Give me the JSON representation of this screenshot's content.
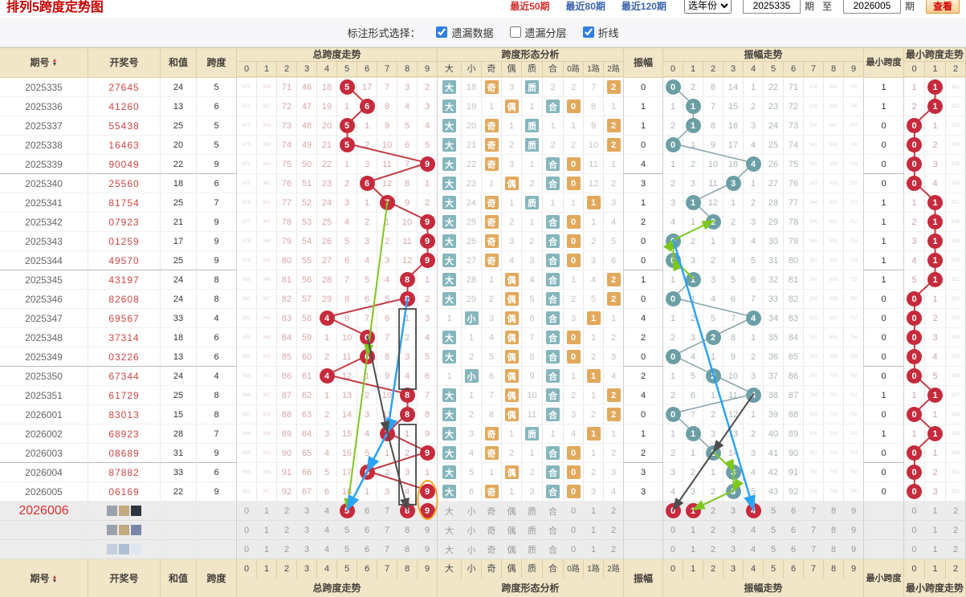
{
  "header": {
    "title": "排列5跨度定势图",
    "links": [
      "最近50期",
      "最近80期",
      "最近120期"
    ],
    "year_select": "选年份",
    "start_value": "2025335",
    "unit_label": "期",
    "to_label": "至",
    "end_value": "2026005",
    "view_button": "查看"
  },
  "controls": {
    "label": "标注形式选择：",
    "items": [
      {
        "label": "遗漏数据",
        "checked": true
      },
      {
        "label": "遗漏分层",
        "checked": false
      },
      {
        "label": "折线",
        "checked": true
      }
    ]
  },
  "columns": {
    "period": "期号",
    "number": "开奖号",
    "sum": "和值",
    "span": "跨度",
    "span_trend": "总跨度走势",
    "analysis": "跨度形态分析",
    "analysis_cols": [
      "大",
      "小",
      "奇",
      "偶",
      "质",
      "合",
      "0路",
      "1路",
      "2路"
    ],
    "amp": "振幅",
    "amp_trend": "振幅走势",
    "min": "最小跨度",
    "min_trend": "最小跨度走势",
    "digits": [
      "0",
      "1",
      "2",
      "3",
      "4",
      "5",
      "6",
      "7",
      "8",
      "9"
    ],
    "min_digits": [
      "0",
      "1",
      "2"
    ]
  },
  "rows": [
    {
      "p": "2025335",
      "n": "27645",
      "s": "24",
      "k": 5,
      "sc": [
        "670",
        "336",
        "71",
        "46",
        "18",
        "*5",
        "17",
        "7",
        "3",
        "2"
      ],
      "an": [
        "*大",
        "18",
        "*奇",
        "3",
        "*质",
        "2",
        "2",
        "7",
        "*2"
      ],
      "a": 0,
      "ac": [
        "*0",
        "2",
        "6",
        "14",
        "1",
        "22",
        "71",
        "338",
        "685",
        "745"
      ],
      "m": 1,
      "mc": [
        "1",
        "*1",
        "311"
      ]
    },
    {
      "p": "2025336",
      "n": "41260",
      "s": "13",
      "k": 6,
      "sc": [
        "671",
        "337",
        "72",
        "47",
        "19",
        "1",
        "*6",
        "8",
        "4",
        "3"
      ],
      "an": [
        "*大",
        "19",
        "1",
        "*偶",
        "1",
        "*合",
        "*0",
        "8",
        "1"
      ],
      "a": 1,
      "ac": [
        "1",
        "*1",
        "7",
        "15",
        "2",
        "23",
        "72",
        "339",
        "686",
        "746"
      ],
      "m": 1,
      "mc": [
        "2",
        "*1",
        "312"
      ]
    },
    {
      "p": "2025337",
      "n": "55438",
      "s": "25",
      "k": 5,
      "sc": [
        "672",
        "338",
        "73",
        "48",
        "20",
        "*5",
        "1",
        "9",
        "5",
        "4"
      ],
      "an": [
        "*大",
        "20",
        "*奇",
        "1",
        "*质",
        "1",
        "1",
        "9",
        "*2"
      ],
      "a": 1,
      "ac": [
        "2",
        "*1",
        "8",
        "16",
        "3",
        "24",
        "73",
        "340",
        "687",
        "747"
      ],
      "m": 0,
      "mc": [
        "*0",
        "1",
        "313"
      ]
    },
    {
      "p": "2025338",
      "n": "16463",
      "s": "20",
      "k": 5,
      "sc": [
        "673",
        "339",
        "74",
        "49",
        "21",
        "*5",
        "2",
        "10",
        "6",
        "5"
      ],
      "an": [
        "*大",
        "21",
        "*奇",
        "2",
        "*质",
        "2",
        "2",
        "10",
        "*2"
      ],
      "a": 0,
      "ac": [
        "*0",
        "1",
        "9",
        "17",
        "4",
        "25",
        "74",
        "341",
        "688",
        "748"
      ],
      "m": 0,
      "mc": [
        "*0",
        "2",
        "314"
      ]
    },
    {
      "p": "2025339",
      "n": "90049",
      "s": "22",
      "k": 9,
      "sc": [
        "674",
        "340",
        "75",
        "50",
        "22",
        "1",
        "3",
        "11",
        "7",
        "*9"
      ],
      "an": [
        "*大",
        "22",
        "*奇",
        "3",
        "1",
        "*合",
        "*0",
        "11",
        "1"
      ],
      "a": 4,
      "ac": [
        "1",
        "2",
        "10",
        "18",
        "*4",
        "26",
        "75",
        "342",
        "689",
        "749"
      ],
      "m": 0,
      "mc": [
        "*0",
        "3",
        "315"
      ]
    },
    {
      "p": "2025340",
      "n": "25560",
      "s": "18",
      "k": 6,
      "sc": [
        "675",
        "341",
        "76",
        "51",
        "23",
        "2",
        "*6",
        "12",
        "8",
        "1"
      ],
      "an": [
        "*大",
        "23",
        "1",
        "*偶",
        "2",
        "*合",
        "*0",
        "12",
        "2"
      ],
      "a": 3,
      "ac": [
        "2",
        "3",
        "11",
        "*3",
        "1",
        "27",
        "76",
        "343",
        "690",
        "750"
      ],
      "m": 0,
      "mc": [
        "*0",
        "4",
        "316"
      ]
    },
    {
      "p": "2025341",
      "n": "81754",
      "s": "25",
      "k": 7,
      "sc": [
        "676",
        "342",
        "77",
        "52",
        "24",
        "3",
        "1",
        "*7",
        "9",
        "2"
      ],
      "an": [
        "*大",
        "24",
        "*奇",
        "1",
        "*质",
        "1",
        "1",
        "*1",
        "3"
      ],
      "a": 1,
      "ac": [
        "3",
        "*1",
        "12",
        "1",
        "2",
        "28",
        "77",
        "344",
        "691",
        "751"
      ],
      "m": 1,
      "mc": [
        "1",
        "*1",
        "317"
      ]
    },
    {
      "p": "2025342",
      "n": "07923",
      "s": "21",
      "k": 9,
      "sc": [
        "677",
        "343",
        "78",
        "53",
        "25",
        "4",
        "2",
        "1",
        "10",
        "*9"
      ],
      "an": [
        "*大",
        "25",
        "*奇",
        "2",
        "1",
        "*合",
        "*0",
        "1",
        "4"
      ],
      "a": 2,
      "ac": [
        "4",
        "1",
        "*2",
        "2",
        "3",
        "29",
        "78",
        "345",
        "692",
        "752"
      ],
      "m": 1,
      "mc": [
        "2",
        "*1",
        "318"
      ]
    },
    {
      "p": "2025343",
      "n": "01259",
      "s": "17",
      "k": 9,
      "sc": [
        "678",
        "344",
        "79",
        "54",
        "26",
        "5",
        "3",
        "2",
        "11",
        "*9"
      ],
      "an": [
        "*大",
        "26",
        "*奇",
        "3",
        "2",
        "*合",
        "*0",
        "2",
        "5"
      ],
      "a": 0,
      "ac": [
        "*0",
        "2",
        "1",
        "3",
        "4",
        "30",
        "79",
        "346",
        "693",
        "753"
      ],
      "m": 1,
      "mc": [
        "3",
        "*1",
        "319"
      ]
    },
    {
      "p": "2025344",
      "n": "49570",
      "s": "25",
      "k": 9,
      "sc": [
        "679",
        "345",
        "80",
        "55",
        "27",
        "6",
        "4",
        "3",
        "12",
        "*9"
      ],
      "an": [
        "*大",
        "27",
        "*奇",
        "4",
        "3",
        "*合",
        "*0",
        "3",
        "6"
      ],
      "a": 0,
      "ac": [
        "*0",
        "3",
        "2",
        "4",
        "5",
        "31",
        "80",
        "347",
        "694",
        "754"
      ],
      "m": 1,
      "mc": [
        "4",
        "*1",
        "320"
      ]
    },
    {
      "p": "2025345",
      "n": "43197",
      "s": "24",
      "k": 8,
      "sc": [
        "680",
        "346",
        "81",
        "56",
        "28",
        "7",
        "5",
        "4",
        "*8",
        "1"
      ],
      "an": [
        "*大",
        "28",
        "1",
        "*偶",
        "4",
        "*合",
        "1",
        "4",
        "*2"
      ],
      "a": 1,
      "ac": [
        "1",
        "*1",
        "3",
        "5",
        "6",
        "32",
        "81",
        "348",
        "695",
        "755"
      ],
      "m": 1,
      "mc": [
        "5",
        "*1",
        "321"
      ]
    },
    {
      "p": "2025346",
      "n": "82608",
      "s": "24",
      "k": 8,
      "sc": [
        "681",
        "347",
        "82",
        "57",
        "29",
        "8",
        "6",
        "5",
        "*8",
        "2"
      ],
      "an": [
        "*大",
        "29",
        "2",
        "*偶",
        "5",
        "*合",
        "2",
        "5",
        "*2"
      ],
      "a": 0,
      "ac": [
        "*0",
        "1",
        "4",
        "6",
        "7",
        "33",
        "82",
        "349",
        "696",
        "756"
      ],
      "m": 0,
      "mc": [
        "*0",
        "1",
        "322"
      ]
    },
    {
      "p": "2025347",
      "n": "69567",
      "s": "33",
      "k": 4,
      "sc": [
        "682",
        "348",
        "83",
        "58",
        "*4",
        "9",
        "7",
        "6",
        "1",
        "3"
      ],
      "an": [
        "1",
        "*小",
        "3",
        "*偶",
        "6",
        "*合",
        "3",
        "*1",
        "1"
      ],
      "a": 4,
      "ac": [
        "1",
        "2",
        "5",
        "7",
        "*4",
        "34",
        "83",
        "350",
        "697",
        "757"
      ],
      "m": 0,
      "mc": [
        "*0",
        "2",
        "323"
      ]
    },
    {
      "p": "2025348",
      "n": "37314",
      "s": "18",
      "k": 6,
      "sc": [
        "683",
        "349",
        "84",
        "59",
        "1",
        "10",
        "*6",
        "7",
        "2",
        "4"
      ],
      "an": [
        "*大",
        "1",
        "4",
        "*偶",
        "7",
        "*合",
        "*0",
        "1",
        "2"
      ],
      "a": 2,
      "ac": [
        "2",
        "3",
        "*2",
        "8",
        "1",
        "35",
        "84",
        "351",
        "698",
        "758"
      ],
      "m": 0,
      "mc": [
        "*0",
        "3",
        "324"
      ]
    },
    {
      "p": "2025349",
      "n": "03226",
      "s": "13",
      "k": 6,
      "sc": [
        "684",
        "350",
        "85",
        "60",
        "2",
        "11",
        "*6",
        "8",
        "3",
        "5"
      ],
      "an": [
        "*大",
        "2",
        "5",
        "*偶",
        "8",
        "*合",
        "*0",
        "2",
        "3"
      ],
      "a": 0,
      "ac": [
        "*0",
        "4",
        "1",
        "9",
        "2",
        "36",
        "85",
        "352",
        "699",
        "759"
      ],
      "m": 0,
      "mc": [
        "*0",
        "4",
        "325"
      ]
    },
    {
      "p": "2025350",
      "n": "67344",
      "s": "24",
      "k": 4,
      "sc": [
        "685",
        "351",
        "86",
        "61",
        "*4",
        "12",
        "1",
        "9",
        "4",
        "6"
      ],
      "an": [
        "1",
        "*小",
        "6",
        "*偶",
        "9",
        "*合",
        "1",
        "*1",
        "4"
      ],
      "a": 2,
      "ac": [
        "1",
        "5",
        "*2",
        "10",
        "3",
        "37",
        "86",
        "353",
        "700",
        "760"
      ],
      "m": 0,
      "mc": [
        "*0",
        "5",
        "326"
      ]
    },
    {
      "p": "2025351",
      "n": "61729",
      "s": "25",
      "k": 8,
      "sc": [
        "686",
        "352",
        "87",
        "62",
        "1",
        "13",
        "2",
        "10",
        "*8",
        "7"
      ],
      "an": [
        "*大",
        "1",
        "7",
        "*偶",
        "10",
        "*合",
        "2",
        "1",
        "*2"
      ],
      "a": 4,
      "ac": [
        "2",
        "6",
        "1",
        "11",
        "*4",
        "38",
        "87",
        "354",
        "701",
        "761"
      ],
      "m": 1,
      "mc": [
        "1",
        "*1",
        "327"
      ]
    },
    {
      "p": "2026001",
      "n": "83013",
      "s": "15",
      "k": 8,
      "sc": [
        "687",
        "353",
        "88",
        "63",
        "2",
        "14",
        "3",
        "11",
        "*8",
        "8"
      ],
      "an": [
        "*大",
        "2",
        "8",
        "*偶",
        "11",
        "*合",
        "3",
        "2",
        "*2"
      ],
      "a": 0,
      "ac": [
        "*0",
        "7",
        "2",
        "12",
        "1",
        "39",
        "88",
        "355",
        "702",
        "762"
      ],
      "m": 0,
      "mc": [
        "*0",
        "1",
        "328"
      ]
    },
    {
      "p": "2026002",
      "n": "68923",
      "s": "28",
      "k": 7,
      "sc": [
        "688",
        "354",
        "89",
        "64",
        "3",
        "15",
        "4",
        "*7",
        "1",
        "9"
      ],
      "an": [
        "*大",
        "3",
        "*奇",
        "1",
        "*质",
        "1",
        "4",
        "*1",
        "1"
      ],
      "a": 1,
      "ac": [
        "1",
        "*1",
        "3",
        "13",
        "2",
        "40",
        "89",
        "356",
        "703",
        "763"
      ],
      "m": 1,
      "mc": [
        "1",
        "*1",
        "329"
      ]
    },
    {
      "p": "2026003",
      "n": "08689",
      "s": "31",
      "k": 9,
      "sc": [
        "689",
        "355",
        "90",
        "65",
        "4",
        "16",
        "5",
        "1",
        "2",
        "*9"
      ],
      "an": [
        "*大",
        "4",
        "*奇",
        "2",
        "1",
        "*合",
        "*0",
        "1",
        "2"
      ],
      "a": 2,
      "ac": [
        "2",
        "1",
        "*2",
        "14",
        "3",
        "41",
        "90",
        "357",
        "704",
        "764"
      ],
      "m": 0,
      "mc": [
        "*0",
        "1",
        "330"
      ]
    },
    {
      "p": "2026004",
      "n": "87882",
      "s": "33",
      "k": 6,
      "sc": [
        "690",
        "356",
        "91",
        "66",
        "5",
        "17",
        "*6",
        "2",
        "3",
        "1"
      ],
      "an": [
        "*大",
        "5",
        "1",
        "*偶",
        "2",
        "*合",
        "*0",
        "2",
        "3"
      ],
      "a": 3,
      "ac": [
        "3",
        "2",
        "1",
        "*3",
        "4",
        "42",
        "91",
        "358",
        "705",
        "765"
      ],
      "m": 0,
      "mc": [
        "*0",
        "2",
        "331"
      ]
    },
    {
      "p": "2026005",
      "n": "06169",
      "s": "22",
      "k": 9,
      "sc": [
        "691",
        "357",
        "92",
        "67",
        "6",
        "18",
        "1",
        "3",
        "4",
        "*9"
      ],
      "an": [
        "*大",
        "6",
        "*奇",
        "1",
        "3",
        "*合",
        "*0",
        "3",
        "4"
      ],
      "a": 3,
      "ac": [
        "4",
        "3",
        "2",
        "*3",
        "5",
        "43",
        "92",
        "359",
        "706",
        "766"
      ],
      "m": 0,
      "mc": [
        "*0",
        "3",
        "332"
      ]
    }
  ],
  "next_row": {
    "p": "2026006",
    "sc": [
      "0",
      "1",
      "2",
      "3",
      "4",
      "*5",
      "6",
      "7",
      "*8",
      "*9"
    ],
    "an": [
      "大",
      "小",
      "奇",
      "偶",
      "质",
      "合",
      "0",
      "1",
      "2"
    ],
    "ac": [
      "*0",
      "*1",
      "2",
      "3",
      "*4",
      "5",
      "6",
      "7",
      "8",
      "9"
    ],
    "mc": [
      "0",
      "1",
      "2"
    ],
    "blocks": [
      "#9aa2ae",
      "#c2a97e",
      "#2e3440"
    ]
  },
  "ref_rows": [
    {
      "sc": [
        "0",
        "1",
        "2",
        "3",
        "4",
        "5",
        "6",
        "7",
        "8",
        "9"
      ],
      "an": [
        "大",
        "小",
        "奇",
        "偶",
        "质",
        "合",
        "0",
        "1",
        "2"
      ],
      "ac": [
        "0",
        "1",
        "2",
        "3",
        "4",
        "5",
        "6",
        "7",
        "8",
        "9"
      ],
      "mc": [
        "0",
        "1",
        "2"
      ],
      "blocks": [
        "#9aa2ae",
        "#c2a97e",
        "#7a86a8"
      ]
    },
    {
      "sc": [
        "0",
        "1",
        "2",
        "3",
        "4",
        "5",
        "6",
        "7",
        "8",
        "9"
      ],
      "an": [
        "大",
        "小",
        "奇",
        "偶",
        "质",
        "合",
        "0",
        "1",
        "2"
      ],
      "ac": [
        "0",
        "1",
        "2",
        "3",
        "4",
        "5",
        "6",
        "7",
        "8",
        "9"
      ],
      "mc": [
        "0",
        "1",
        "2"
      ],
      "blocks": [
        "#c3cfdf",
        "#aebfd4",
        "#dfe7f0"
      ]
    }
  ],
  "annotations": {
    "span_lines": [
      {
        "color": "#7dc71d",
        "width": 2,
        "points": [
          [
            6,
            7
          ],
          [
            14,
            6
          ],
          [
            22,
            5
          ]
        ],
        "arrows": true
      },
      {
        "color": "#2ba3f7",
        "width": 2.5,
        "points": [
          [
            11,
            8
          ],
          [
            18,
            7
          ],
          [
            20,
            6
          ],
          [
            22,
            5
          ]
        ],
        "arrows": true
      },
      {
        "color": "#4d4d4d",
        "width": 2,
        "points": [
          [
            13,
            6
          ],
          [
            18,
            7
          ],
          [
            22,
            8
          ]
        ],
        "arrows": true
      }
    ],
    "amp_lines": [
      {
        "color": "#7dc71d",
        "width": 2,
        "points": [
          [
            10,
            1
          ],
          [
            9,
            0
          ],
          [
            8,
            0
          ],
          [
            7,
            2
          ]
        ],
        "arrows": true
      },
      {
        "color": "#7dc71d",
        "width": 2,
        "points": [
          [
            19,
            2
          ],
          [
            20,
            3
          ],
          [
            21,
            3
          ],
          [
            22,
            1
          ]
        ],
        "arrows": true
      },
      {
        "color": "#2ba3f7",
        "width": 2.5,
        "points": [
          [
            8,
            0
          ],
          [
            22,
            4
          ]
        ],
        "arrows": true
      },
      {
        "color": "#4d4d4d",
        "width": 2,
        "points": [
          [
            16,
            4
          ],
          [
            19,
            2
          ],
          [
            22,
            0
          ]
        ],
        "arrows": true
      }
    ],
    "rects": [
      {
        "chart": "span",
        "col": 8,
        "row_start": 12,
        "row_end": 15
      },
      {
        "chart": "span",
        "col": 8,
        "row_start": 18,
        "row_end": 21
      }
    ],
    "ellipse": {
      "chart": "span",
      "col": 9,
      "row_start": 21,
      "row_end": 22,
      "color": "#f5a623"
    }
  },
  "colors": {
    "red_circle": "#c62a3c",
    "teal_circle": "#6b9fa5",
    "span_line": "#c43b47",
    "amp_line": "#85a0a5",
    "min_line": "#c43b47",
    "teal_badge": "#85b6bc",
    "orange_badge": "#e2a95c",
    "header_bg": "#f1e6c8"
  }
}
